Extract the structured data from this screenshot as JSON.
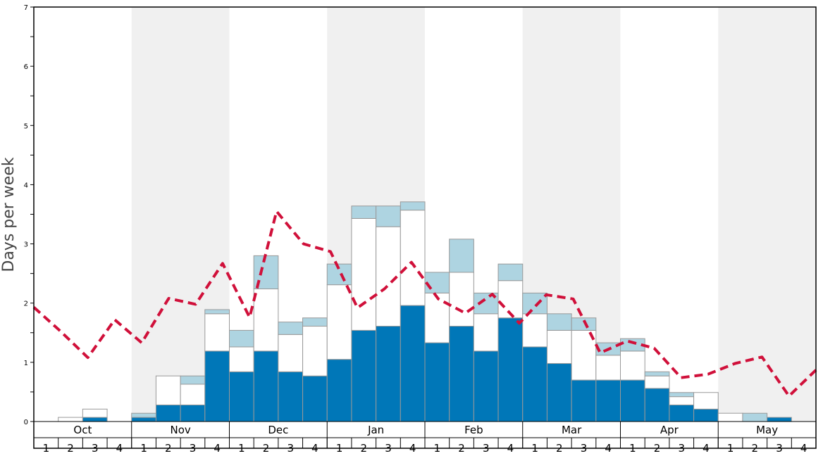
{
  "chart_data": {
    "type": "bar",
    "ylabel": "Days per week",
    "ylim": [
      0,
      7
    ],
    "y_ticks": [
      "0",
      "1",
      "2",
      "3",
      "4",
      "5",
      "6",
      "7"
    ],
    "months": [
      "Oct",
      "Nov",
      "Dec",
      "Jan",
      "Feb",
      "Mar",
      "Apr",
      "May"
    ],
    "week_labels": [
      "1",
      "2",
      "3",
      "4"
    ],
    "stacked": true,
    "colors": {
      "dark": "#0077b8",
      "white": "#ffffff",
      "light": "#aed4e1",
      "line": "#d0103a",
      "band": "#f0f0f0"
    },
    "series": [
      {
        "key": "dark",
        "values": [
          0,
          0,
          0.07,
          0,
          0.07,
          0.28,
          0.28,
          1.19,
          0.84,
          1.19,
          0.84,
          0.77,
          1.05,
          1.54,
          1.61,
          1.96,
          1.33,
          1.61,
          1.19,
          1.75,
          1.26,
          0.98,
          0.7,
          0.7,
          0.7,
          0.56,
          0.28,
          0.21,
          0,
          0,
          0.07,
          0
        ]
      },
      {
        "key": "white",
        "values": [
          0,
          0.07,
          0.14,
          0,
          0,
          0.49,
          0.35,
          0.63,
          0.42,
          1.05,
          0.63,
          0.84,
          1.26,
          1.89,
          1.68,
          1.61,
          0.84,
          0.91,
          0.63,
          0.63,
          0.56,
          0.56,
          0.84,
          0.42,
          0.49,
          0.21,
          0.14,
          0.28,
          0.14,
          0,
          0,
          0
        ]
      },
      {
        "key": "light",
        "values": [
          0,
          0,
          0,
          0,
          0.07,
          0,
          0.14,
          0.07,
          0.28,
          0.56,
          0.21,
          0.14,
          0.35,
          0.21,
          0.35,
          0.14,
          0.35,
          0.56,
          0.35,
          0.28,
          0.35,
          0.28,
          0.21,
          0.21,
          0.21,
          0.07,
          0.07,
          0,
          0,
          0.14,
          0,
          0
        ]
      },
      {
        "key": "line",
        "type": "line",
        "values": [
          1.93,
          1.52,
          1.08,
          1.72,
          1.33,
          2.08,
          1.98,
          2.67,
          1.76,
          3.55,
          3.0,
          2.87,
          1.92,
          2.24,
          2.69,
          2.07,
          1.83,
          2.15,
          1.66,
          2.14,
          2.07,
          1.16,
          1.36,
          1.24,
          0.74,
          0.8,
          0.98,
          1.09,
          0.43,
          0.87
        ]
      }
    ]
  }
}
